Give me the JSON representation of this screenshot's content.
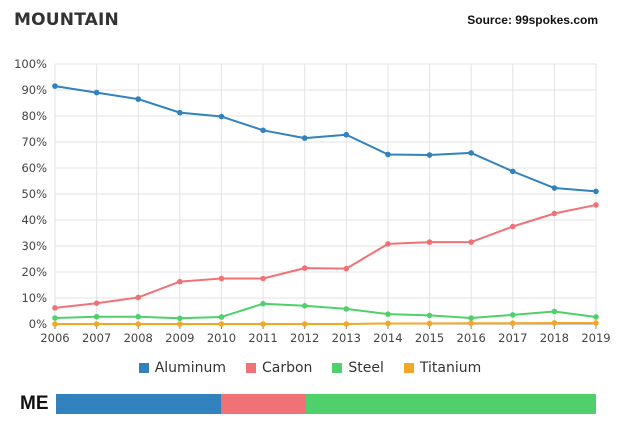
{
  "header": {
    "title": "MOUNTAIN",
    "source": "Source: 99spokes.com"
  },
  "chart_data": {
    "type": "line",
    "x": [
      2006,
      2007,
      2008,
      2009,
      2010,
      2011,
      2012,
      2013,
      2014,
      2015,
      2016,
      2017,
      2018,
      2019
    ],
    "ylim": [
      0,
      100
    ],
    "yticks": [
      "0%",
      "10%",
      "20%",
      "30%",
      "40%",
      "50%",
      "60%",
      "70%",
      "80%",
      "90%",
      "100%"
    ],
    "grid": true,
    "legend_position": "bottom",
    "series": [
      {
        "name": "Aluminum",
        "color": "#3182bd",
        "values": [
          91.5,
          89,
          86.5,
          81.3,
          79.8,
          74.5,
          71.5,
          72.8,
          65.2,
          65,
          65.8,
          58.7,
          52.3,
          51
        ]
      },
      {
        "name": "Carbon",
        "color": "#f07277",
        "values": [
          6.2,
          8,
          10.2,
          16.3,
          17.5,
          17.5,
          21.5,
          21.3,
          30.8,
          31.5,
          31.5,
          37.5,
          42.5,
          45.8
        ]
      },
      {
        "name": "Steel",
        "color": "#4fd06a",
        "values": [
          2.3,
          2.8,
          2.8,
          2.2,
          2.7,
          7.8,
          7,
          5.8,
          3.8,
          3.3,
          2.3,
          3.5,
          4.8,
          2.7
        ]
      },
      {
        "name": "Titanium",
        "color": "#f5a623",
        "values": [
          0,
          0,
          0,
          0,
          0,
          0,
          0,
          0,
          0.2,
          0.2,
          0.3,
          0.3,
          0.4,
          0.4
        ]
      }
    ]
  },
  "me_bar": {
    "label": "ME",
    "segments": [
      {
        "material": "Aluminum",
        "fraction": 0.306,
        "color": "#3182bd"
      },
      {
        "material": "Carbon",
        "fraction": 0.157,
        "color": "#f07277"
      },
      {
        "material": "Steel",
        "fraction": 0.537,
        "color": "#4fd06a"
      }
    ]
  }
}
